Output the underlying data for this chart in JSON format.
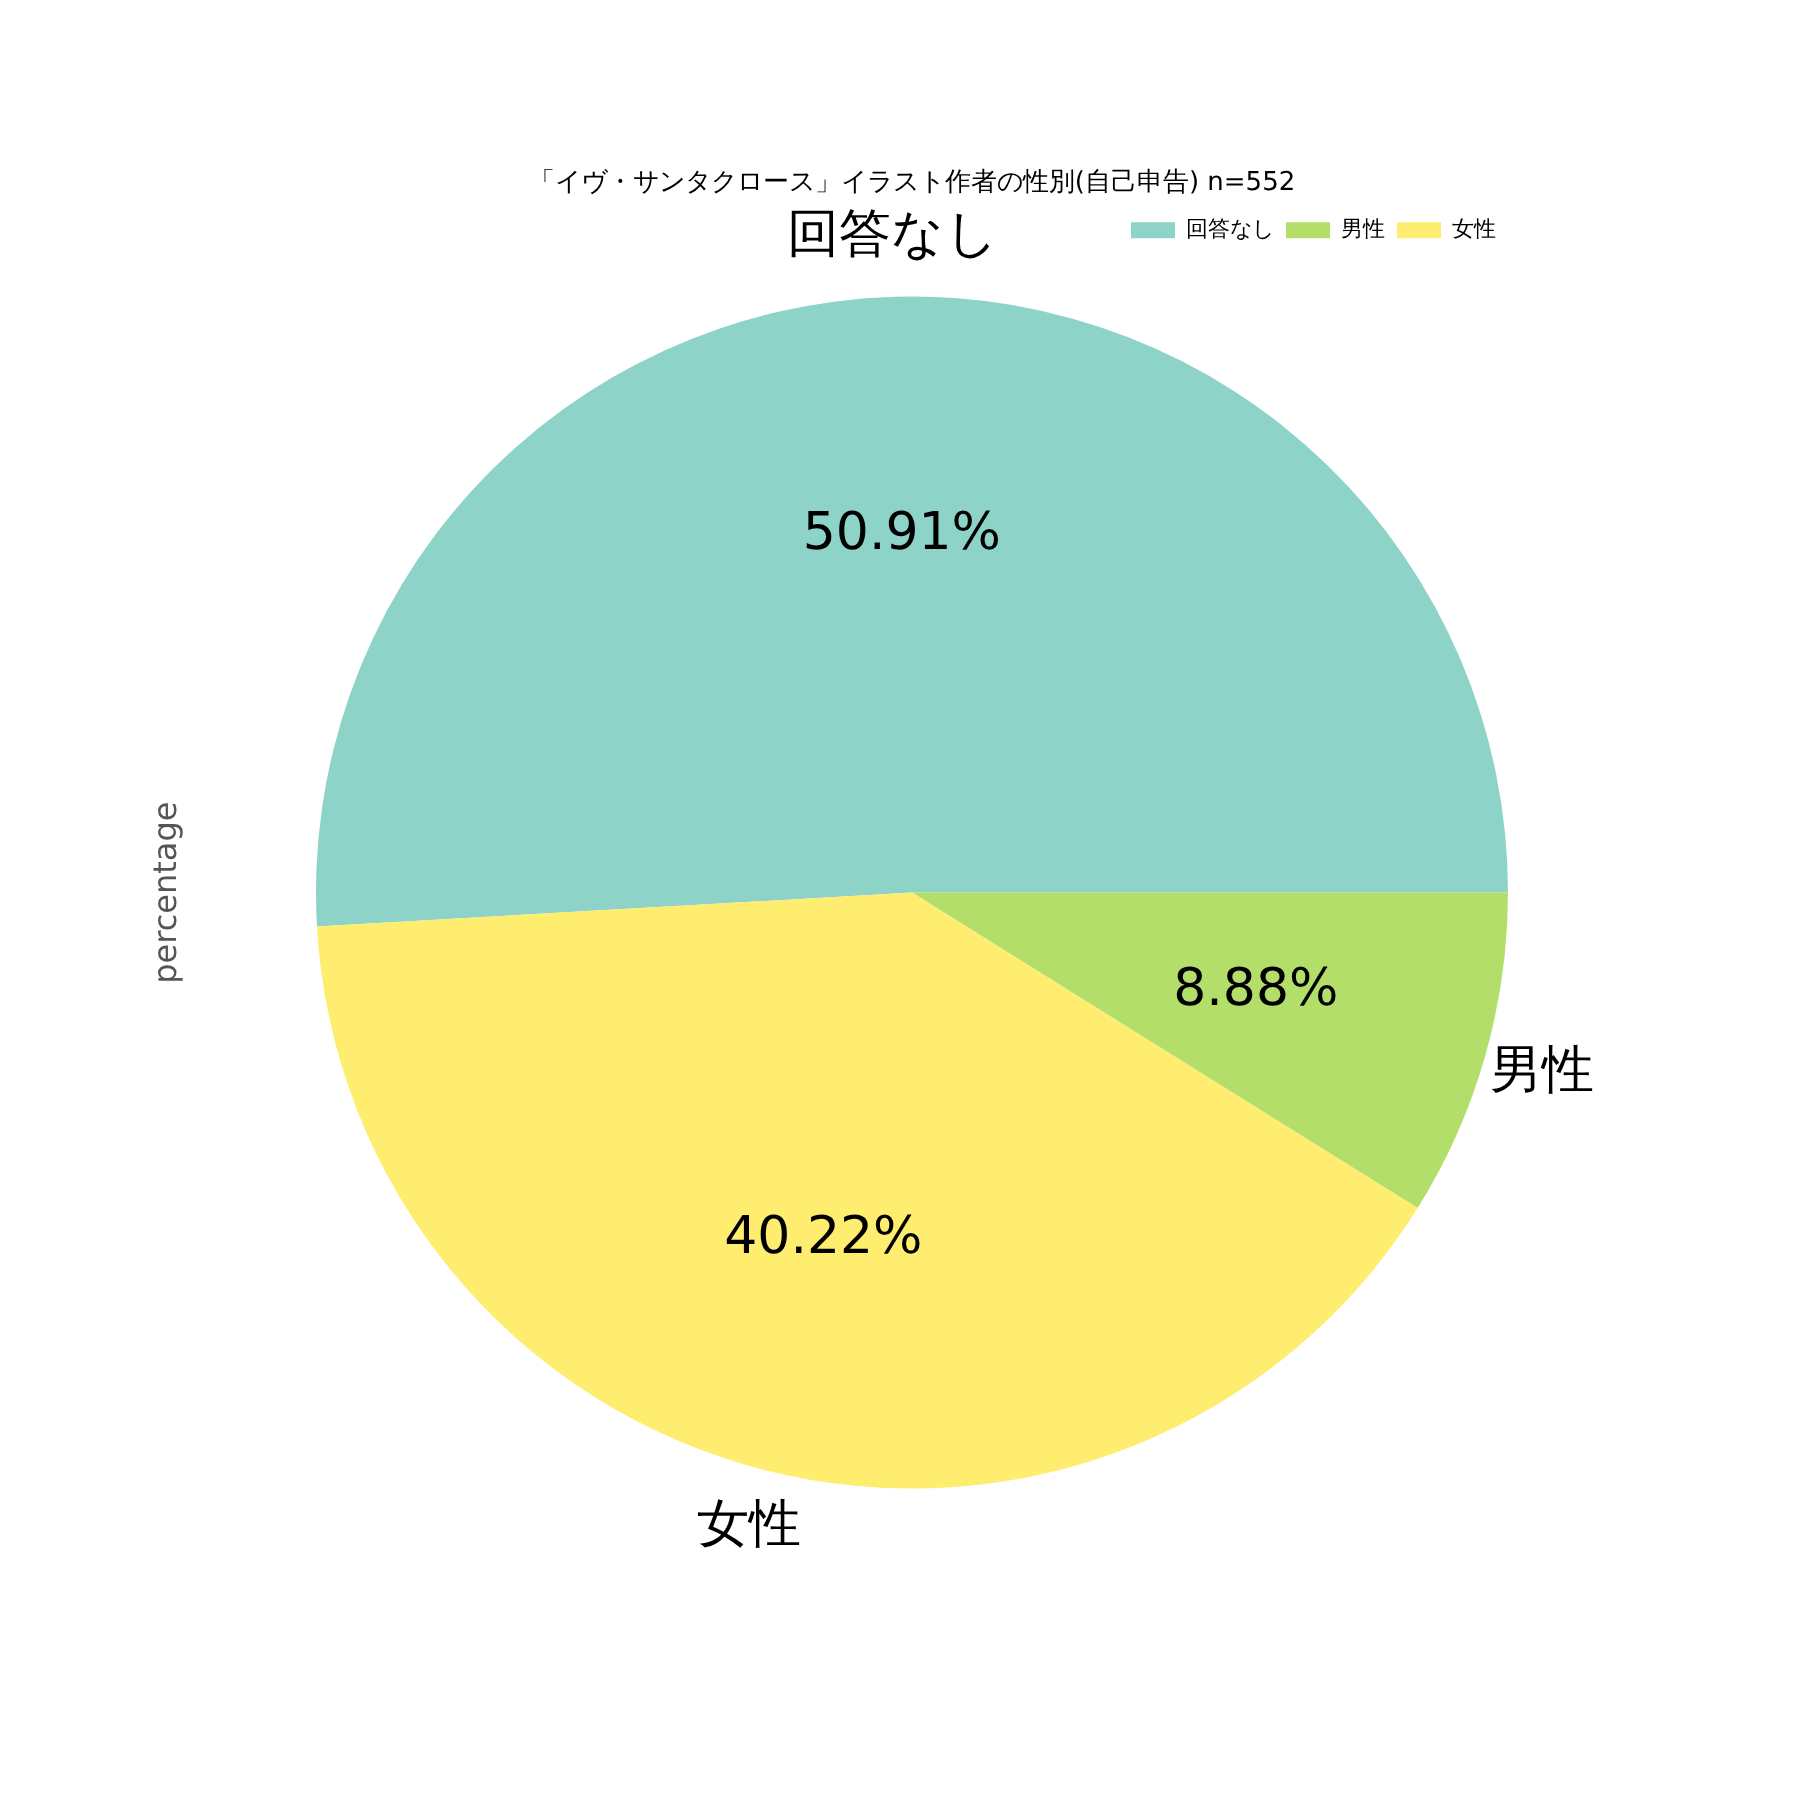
{
  "chart_data": {
    "type": "pie",
    "title": "「イヴ・サンタクロース」イラスト作者の性別(自己申告) n=552",
    "ylabel": "percentage",
    "categories": [
      "回答なし",
      "男性",
      "女性"
    ],
    "values": [
      50.91,
      8.88,
      40.22
    ],
    "value_labels": [
      "50.91%",
      "8.88%",
      "40.22%"
    ],
    "colors": [
      "#8dd3c7",
      "#b3de69",
      "#ffed6f"
    ],
    "legend": "top right"
  }
}
